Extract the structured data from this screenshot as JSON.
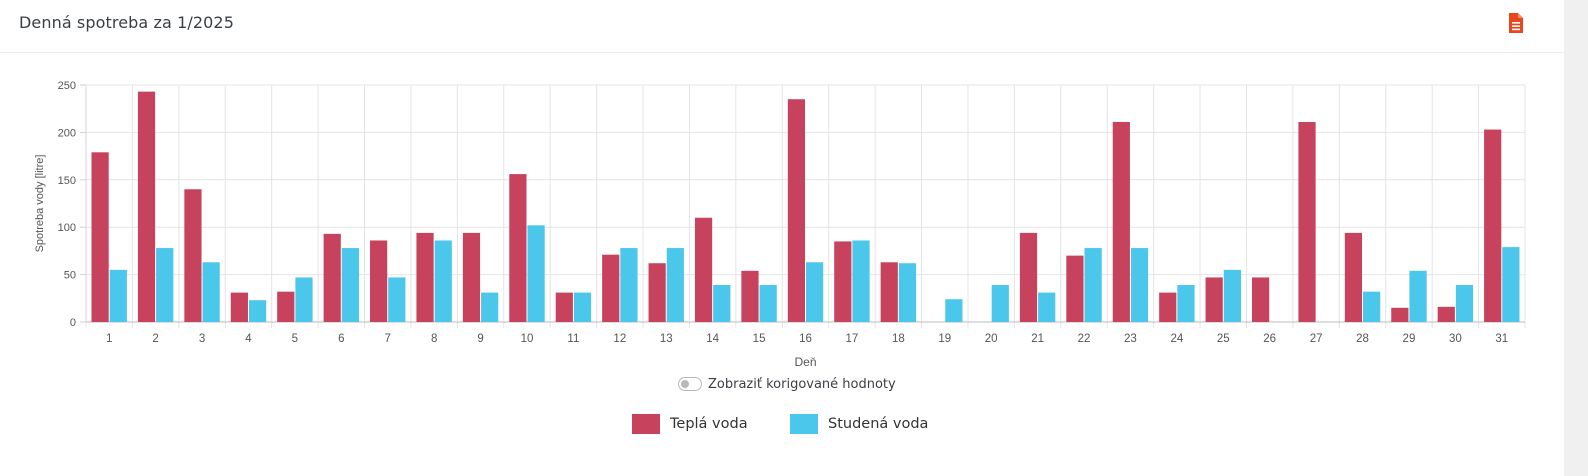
{
  "header": {
    "title": "Denná spotreba za 1/2025",
    "export_icon": "pdf-document-icon",
    "export_icon_color": "#e8471b"
  },
  "toggle": {
    "label": "Zobraziť korigované hodnoty",
    "checked": false
  },
  "legend": {
    "items": [
      {
        "label": "Teplá voda",
        "color": "#c7425c"
      },
      {
        "label": "Studená voda",
        "color": "#4ac7ea"
      }
    ]
  },
  "chart_data": {
    "type": "bar",
    "title": "",
    "xlabel": "Deň",
    "ylabel": "Spotreba vody [litre]",
    "ylim": [
      0,
      250
    ],
    "yticks": [
      0,
      50,
      100,
      150,
      200,
      250
    ],
    "grid": true,
    "categories": [
      "1",
      "2",
      "3",
      "4",
      "5",
      "6",
      "7",
      "8",
      "9",
      "10",
      "11",
      "12",
      "13",
      "14",
      "15",
      "16",
      "17",
      "18",
      "19",
      "20",
      "21",
      "22",
      "23",
      "24",
      "25",
      "26",
      "27",
      "28",
      "29",
      "30",
      "31"
    ],
    "series": [
      {
        "name": "Teplá voda",
        "color": "#c7425c",
        "values": [
          179,
          243,
          140,
          31,
          32,
          93,
          86,
          94,
          94,
          156,
          31,
          71,
          62,
          110,
          54,
          235,
          85,
          63,
          0,
          0,
          94,
          70,
          211,
          31,
          47,
          47,
          211,
          94,
          15,
          16,
          203
        ]
      },
      {
        "name": "Studená voda",
        "color": "#4ac7ea",
        "values": [
          55,
          78,
          63,
          23,
          47,
          78,
          47,
          86,
          31,
          102,
          31,
          78,
          78,
          39,
          39,
          63,
          86,
          62,
          24,
          39,
          31,
          78,
          78,
          39,
          55,
          0,
          0,
          32,
          54,
          39,
          79
        ]
      }
    ]
  }
}
